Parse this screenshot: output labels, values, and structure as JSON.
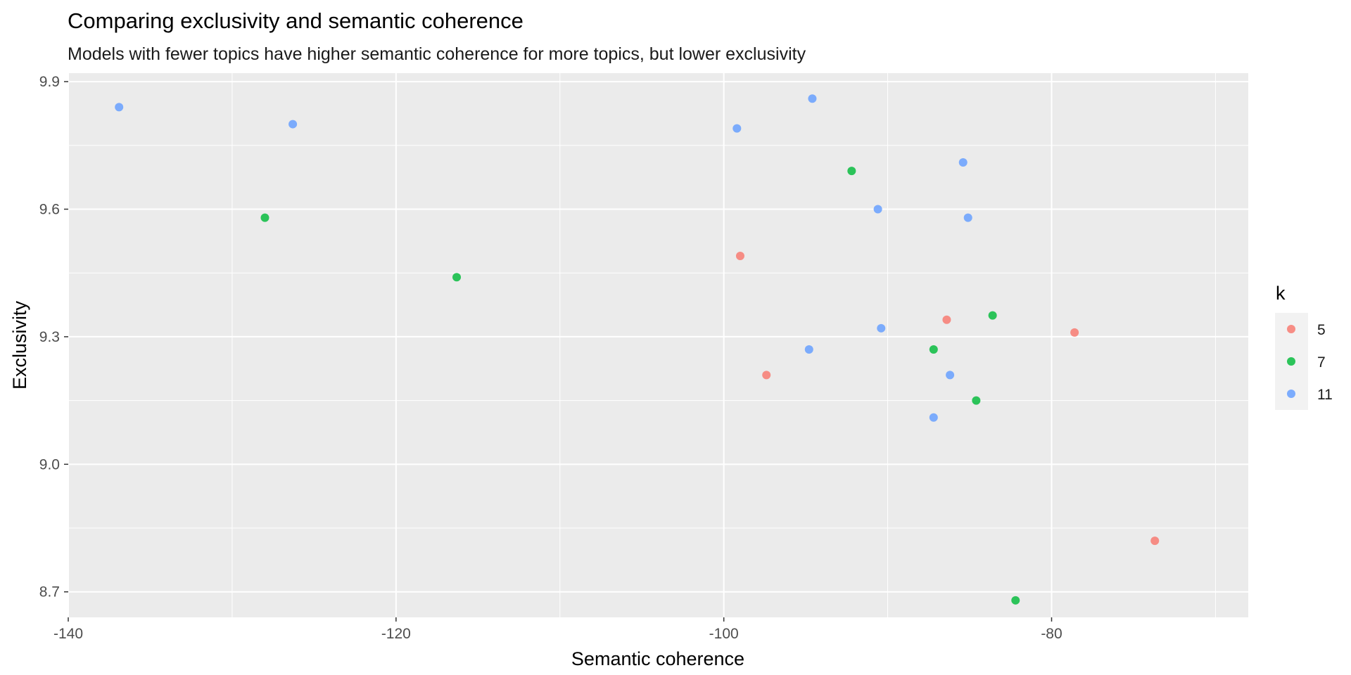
{
  "chart_data": {
    "type": "scatter",
    "title": "Comparing exclusivity and semantic coherence",
    "subtitle": "Models with fewer topics have higher semantic coherence for more topics, but lower exclusivity",
    "xlabel": "Semantic coherence",
    "ylabel": "Exclusivity",
    "xlim": [
      -140,
      -68
    ],
    "ylim": [
      8.64,
      9.92
    ],
    "xticks": [
      -140,
      -120,
      -100,
      -80
    ],
    "xtick_labels": [
      "-140",
      "-120",
      "-100",
      "-80"
    ],
    "yticks": [
      8.7,
      9.0,
      9.3,
      9.6,
      9.9
    ],
    "ytick_labels": [
      "8.7",
      "9.0",
      "9.3",
      "9.6",
      "9.9"
    ],
    "grid": true,
    "legend": {
      "title": "k",
      "position": "right"
    },
    "series": [
      {
        "name": "5",
        "color": "#F8766D",
        "points": [
          {
            "x": -99.0,
            "y": 9.49
          },
          {
            "x": -86.4,
            "y": 9.34
          },
          {
            "x": -78.6,
            "y": 9.31
          },
          {
            "x": -97.4,
            "y": 9.21
          },
          {
            "x": -73.7,
            "y": 8.82
          }
        ]
      },
      {
        "name": "7",
        "color": "#00BA38",
        "points": [
          {
            "x": -92.2,
            "y": 9.69
          },
          {
            "x": -128.0,
            "y": 9.58
          },
          {
            "x": -116.3,
            "y": 9.44
          },
          {
            "x": -83.6,
            "y": 9.35
          },
          {
            "x": -87.2,
            "y": 9.27
          },
          {
            "x": -84.6,
            "y": 9.15
          },
          {
            "x": -82.2,
            "y": 8.68
          }
        ]
      },
      {
        "name": "11",
        "color": "#619CFF",
        "points": [
          {
            "x": -136.9,
            "y": 9.84
          },
          {
            "x": -126.3,
            "y": 9.8
          },
          {
            "x": -94.6,
            "y": 9.86
          },
          {
            "x": -99.2,
            "y": 9.79
          },
          {
            "x": -85.4,
            "y": 9.71
          },
          {
            "x": -90.6,
            "y": 9.6
          },
          {
            "x": -85.1,
            "y": 9.58
          },
          {
            "x": -90.4,
            "y": 9.32
          },
          {
            "x": -94.8,
            "y": 9.27
          },
          {
            "x": -86.2,
            "y": 9.21
          },
          {
            "x": -87.2,
            "y": 9.11
          }
        ]
      }
    ]
  }
}
